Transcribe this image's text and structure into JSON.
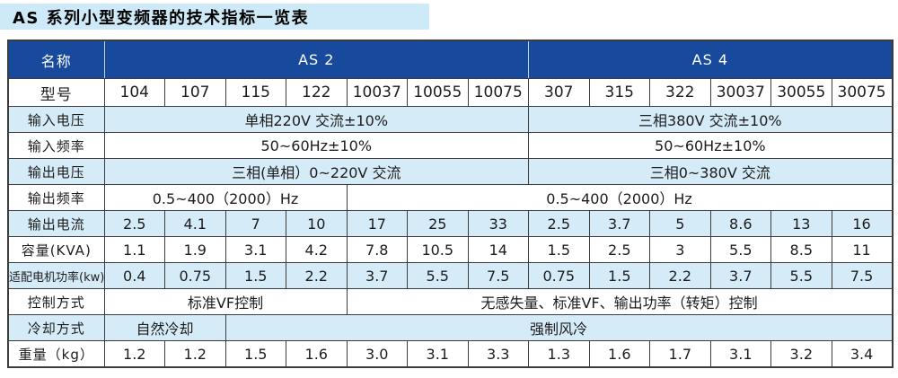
{
  "title": "AS 系列小型变频器的技术指标一览表",
  "colors": {
    "header_bg": "#17499c",
    "row_shade": "#d6ebf8",
    "title_bg": "#cee9f7",
    "border": "#3c3c3c",
    "header_text": "#ffffff",
    "body_text": "#1c1c1c"
  },
  "table": {
    "header": {
      "name_label": "名称",
      "groups": [
        {
          "label": "AS 2",
          "span": 7
        },
        {
          "label": "AS 4",
          "span": 6
        }
      ]
    },
    "rows": [
      {
        "label": "型号",
        "cells": [
          {
            "text": "104",
            "span": 1
          },
          {
            "text": "107",
            "span": 1
          },
          {
            "text": "115",
            "span": 1
          },
          {
            "text": "122",
            "span": 1
          },
          {
            "text": "10037",
            "span": 1
          },
          {
            "text": "10055",
            "span": 1
          },
          {
            "text": "10075",
            "span": 1
          },
          {
            "text": "307",
            "span": 1
          },
          {
            "text": "315",
            "span": 1
          },
          {
            "text": "322",
            "span": 1
          },
          {
            "text": "30037",
            "span": 1
          },
          {
            "text": "30055",
            "span": 1
          },
          {
            "text": "30075",
            "span": 1
          }
        ]
      },
      {
        "label": "输入电压",
        "cells": [
          {
            "text": "单相220V 交流±10%",
            "span": 7
          },
          {
            "text": "三相380V 交流±10%",
            "span": 6
          }
        ]
      },
      {
        "label": "输入频率",
        "cells": [
          {
            "text": "50~60Hz±10%",
            "span": 7
          },
          {
            "text": "50~60Hz±10%",
            "span": 6
          }
        ]
      },
      {
        "label": "输出电压",
        "cells": [
          {
            "text": "三相(单相）0~220V 交流",
            "span": 7
          },
          {
            "text": "三相0~380V 交流",
            "span": 6
          }
        ]
      },
      {
        "label": "输出频率",
        "cells": [
          {
            "text": "0.5~400（2000）Hz",
            "span": 4
          },
          {
            "text": "0.5~400（2000）Hz",
            "span": 9
          }
        ]
      },
      {
        "label": "输出电流",
        "cells": [
          {
            "text": "2.5",
            "span": 1
          },
          {
            "text": "4.1",
            "span": 1
          },
          {
            "text": "7",
            "span": 1
          },
          {
            "text": "10",
            "span": 1
          },
          {
            "text": "17",
            "span": 1
          },
          {
            "text": "25",
            "span": 1
          },
          {
            "text": "33",
            "span": 1
          },
          {
            "text": "2.5",
            "span": 1
          },
          {
            "text": "3.7",
            "span": 1
          },
          {
            "text": "5",
            "span": 1
          },
          {
            "text": "8.6",
            "span": 1
          },
          {
            "text": "13",
            "span": 1
          },
          {
            "text": "16",
            "span": 1
          }
        ]
      },
      {
        "label": "容量(KVA)",
        "cells": [
          {
            "text": "1.1",
            "span": 1
          },
          {
            "text": "1.9",
            "span": 1
          },
          {
            "text": "3.1",
            "span": 1
          },
          {
            "text": "4.2",
            "span": 1
          },
          {
            "text": "7.8",
            "span": 1
          },
          {
            "text": "10.5",
            "span": 1
          },
          {
            "text": "14",
            "span": 1
          },
          {
            "text": "1.5",
            "span": 1
          },
          {
            "text": "2.5",
            "span": 1
          },
          {
            "text": "3",
            "span": 1
          },
          {
            "text": "5.5",
            "span": 1
          },
          {
            "text": "8.5",
            "span": 1
          },
          {
            "text": "11",
            "span": 1
          }
        ]
      },
      {
        "label": "适配电机功率(kw)",
        "cells": [
          {
            "text": "0.4",
            "span": 1
          },
          {
            "text": "0.75",
            "span": 1
          },
          {
            "text": "1.5",
            "span": 1
          },
          {
            "text": "2.2",
            "span": 1
          },
          {
            "text": "3.7",
            "span": 1
          },
          {
            "text": "5.5",
            "span": 1
          },
          {
            "text": "7.5",
            "span": 1
          },
          {
            "text": "0.75",
            "span": 1
          },
          {
            "text": "1.5",
            "span": 1
          },
          {
            "text": "2.2",
            "span": 1
          },
          {
            "text": "3.7",
            "span": 1
          },
          {
            "text": "5.5",
            "span": 1
          },
          {
            "text": "7.5",
            "span": 1
          }
        ]
      },
      {
        "label": "控制方式",
        "cells": [
          {
            "text": "标准VF控制",
            "span": 4
          },
          {
            "text": "无感失量、标准VF、输出功率（转矩）控制",
            "span": 9
          }
        ]
      },
      {
        "label": "冷却方式",
        "cells": [
          {
            "text": "自然冷却",
            "span": 2
          },
          {
            "text": "强制风冷",
            "span": 11
          }
        ]
      },
      {
        "label": "重量（kg）",
        "cells": [
          {
            "text": "1.2",
            "span": 1
          },
          {
            "text": "1.2",
            "span": 1
          },
          {
            "text": "1.5",
            "span": 1
          },
          {
            "text": "1.6",
            "span": 1
          },
          {
            "text": "3.0",
            "span": 1
          },
          {
            "text": "3.1",
            "span": 1
          },
          {
            "text": "3.3",
            "span": 1
          },
          {
            "text": "1.3",
            "span": 1
          },
          {
            "text": "1.6",
            "span": 1
          },
          {
            "text": "1.7",
            "span": 1
          },
          {
            "text": "3.1",
            "span": 1
          },
          {
            "text": "3.2",
            "span": 1
          },
          {
            "text": "3.4",
            "span": 1
          }
        ]
      }
    ]
  }
}
